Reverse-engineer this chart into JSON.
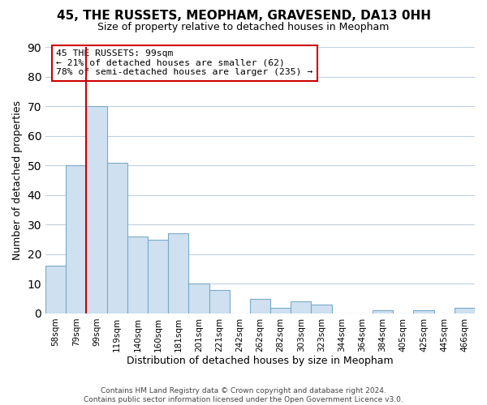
{
  "title": "45, THE RUSSETS, MEOPHAM, GRAVESEND, DA13 0HH",
  "subtitle": "Size of property relative to detached houses in Meopham",
  "xlabel": "Distribution of detached houses by size in Meopham",
  "ylabel": "Number of detached properties",
  "bin_labels": [
    "58sqm",
    "79sqm",
    "99sqm",
    "119sqm",
    "140sqm",
    "160sqm",
    "181sqm",
    "201sqm",
    "221sqm",
    "242sqm",
    "262sqm",
    "282sqm",
    "303sqm",
    "323sqm",
    "344sqm",
    "364sqm",
    "384sqm",
    "405sqm",
    "425sqm",
    "445sqm",
    "466sqm"
  ],
  "bar_values": [
    16,
    50,
    70,
    51,
    26,
    25,
    27,
    10,
    8,
    0,
    5,
    2,
    4,
    3,
    0,
    0,
    1,
    0,
    1,
    0,
    2
  ],
  "bar_color": "#cfe0f0",
  "bar_edge_color": "#7aaac8",
  "vline_color": "#cc0000",
  "ylim": [
    0,
    90
  ],
  "yticks": [
    0,
    10,
    20,
    30,
    40,
    50,
    60,
    70,
    80,
    90
  ],
  "annotation_text": "45 THE RUSSETS: 99sqm\n← 21% of detached houses are smaller (62)\n78% of semi-detached houses are larger (235) →",
  "annotation_box_color": "#ffffff",
  "annotation_box_edge": "#cc0000",
  "footer_line1": "Contains HM Land Registry data © Crown copyright and database right 2024.",
  "footer_line2": "Contains public sector information licensed under the Open Government Licence v3.0.",
  "background_color": "#ffffff",
  "grid_color": "#c0d0e0"
}
